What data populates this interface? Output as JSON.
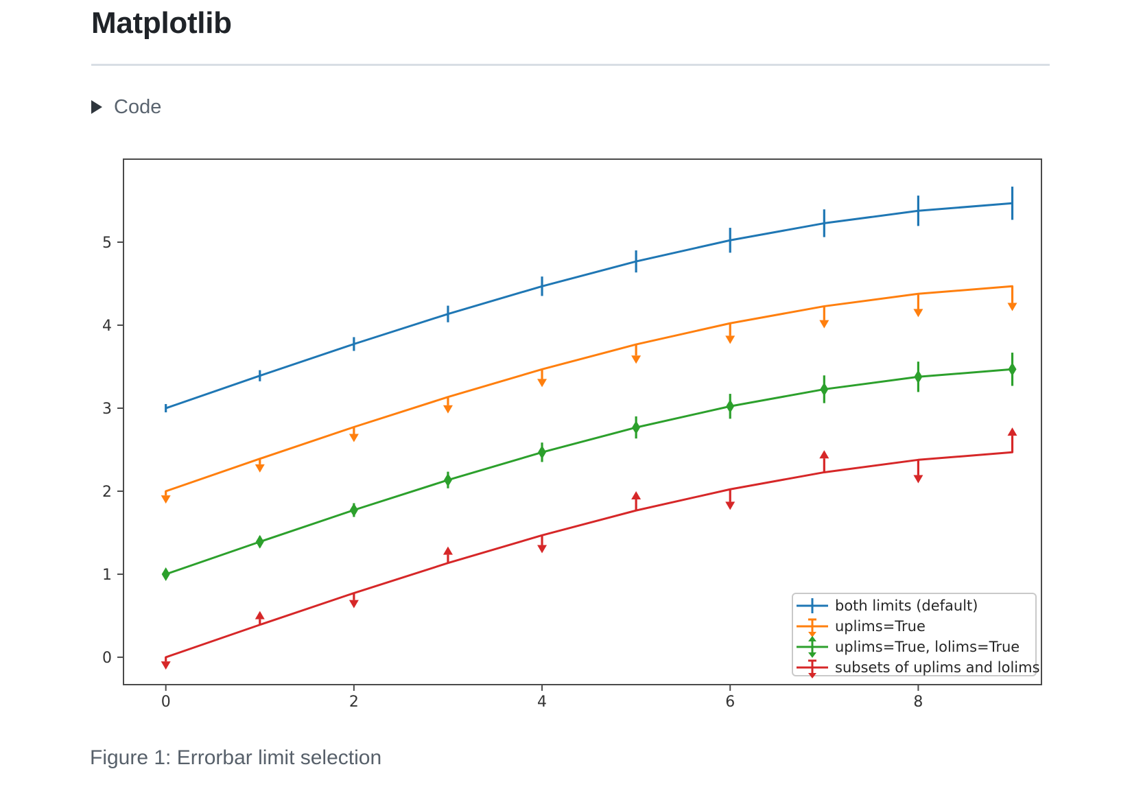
{
  "page": {
    "title": "Matplotlib",
    "code_toggle_label": "Code",
    "figure_caption": "Figure 1: Errorbar limit selection"
  },
  "icons": {
    "code_toggle": "triangle-right"
  },
  "colors": {
    "page_text": "#1f2328",
    "muted_text": "#57606a",
    "divider": "#d8dee4",
    "axes": "#4a4a4a",
    "tick_label": "#333333",
    "legend_border": "#c9c9c9"
  },
  "chart_data": {
    "type": "line",
    "variant": "errorbar",
    "title": "",
    "xlabel": "",
    "ylabel": "",
    "grid": false,
    "legend_position": "lower right",
    "x": [
      0,
      1,
      2,
      3,
      4,
      5,
      6,
      7,
      8,
      9
    ],
    "xticks": [
      0,
      2,
      4,
      6,
      8
    ],
    "yticks": [
      0,
      1,
      2,
      3,
      4,
      5
    ],
    "xlim": [
      -0.45,
      9.31
    ],
    "ylim": [
      -0.33,
      6.0
    ],
    "series": [
      {
        "label": "both limits (default)",
        "color": "#1f77b4",
        "limits": "both",
        "values": [
          3.0,
          3.391,
          3.773,
          4.135,
          4.469,
          4.768,
          5.023,
          5.228,
          5.378,
          5.469
        ],
        "yerr": [
          0.05,
          0.067,
          0.083,
          0.1,
          0.117,
          0.133,
          0.15,
          0.167,
          0.183,
          0.2
        ]
      },
      {
        "label": "uplims=True",
        "color": "#ff7f0e",
        "limits": "uplims",
        "values": [
          2.0,
          2.391,
          2.773,
          3.135,
          3.469,
          3.768,
          4.023,
          4.228,
          4.378,
          4.469
        ],
        "yerr": [
          0.05,
          0.067,
          0.083,
          0.1,
          0.117,
          0.133,
          0.15,
          0.167,
          0.183,
          0.2
        ]
      },
      {
        "label": "uplims=True, lolims=True",
        "color": "#2ca02c",
        "limits": "uplims+lolims",
        "values": [
          1.0,
          1.391,
          1.773,
          2.135,
          2.469,
          2.768,
          3.023,
          3.228,
          3.378,
          3.469
        ],
        "yerr": [
          0.05,
          0.067,
          0.083,
          0.1,
          0.117,
          0.133,
          0.15,
          0.167,
          0.183,
          0.2
        ]
      },
      {
        "label": "subsets of uplims and lolims",
        "color": "#d62728",
        "limits": "subsets",
        "uplims": [
          true,
          false,
          true,
          false,
          true,
          false,
          true,
          false,
          true,
          false
        ],
        "lolims": [
          false,
          true,
          false,
          true,
          false,
          true,
          false,
          true,
          false,
          true
        ],
        "values": [
          0.0,
          0.391,
          0.773,
          1.135,
          1.469,
          1.768,
          2.023,
          2.228,
          2.378,
          2.469
        ],
        "yerr": [
          0.05,
          0.067,
          0.083,
          0.1,
          0.117,
          0.133,
          0.15,
          0.167,
          0.183,
          0.2
        ]
      }
    ]
  }
}
